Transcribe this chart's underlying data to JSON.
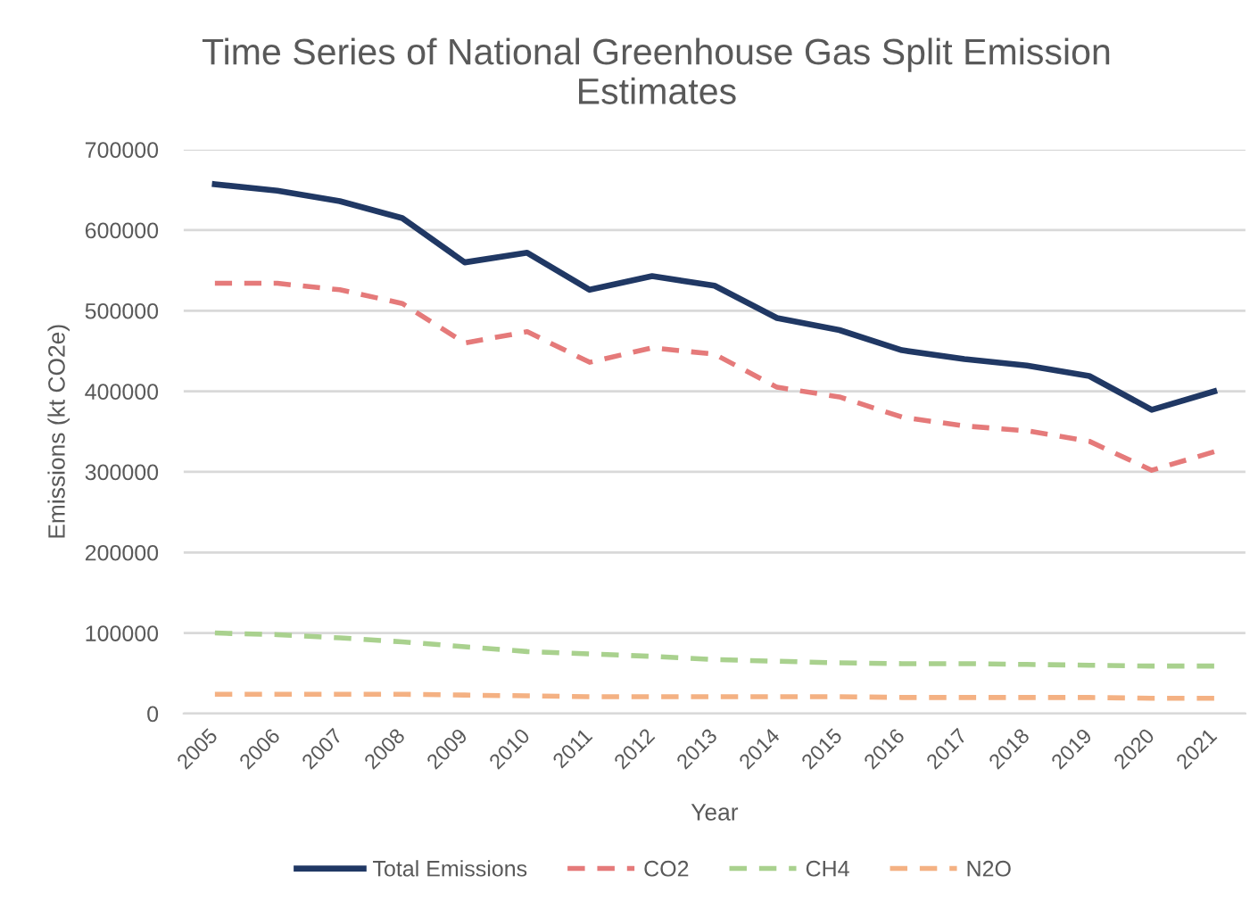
{
  "chart_data": {
    "type": "line",
    "title": "Time Series of National Greenhouse Gas Split Emission Estimates",
    "xlabel": "Year",
    "ylabel": "Emissions (kt CO2e)",
    "categories": [
      "2005",
      "2006",
      "2007",
      "2008",
      "2009",
      "2010",
      "2011",
      "2012",
      "2013",
      "2014",
      "2015",
      "2016",
      "2017",
      "2018",
      "2019",
      "2020",
      "2021"
    ],
    "ylim": [
      0,
      700000
    ],
    "yticks": [
      0,
      100000,
      200000,
      300000,
      400000,
      500000,
      600000,
      700000
    ],
    "grid": "y",
    "legend": "bottom",
    "series": [
      {
        "name": "Total Emissions",
        "color": "#203864",
        "line_style": "solid",
        "values": [
          657000,
          649000,
          636000,
          615000,
          560000,
          572000,
          526000,
          543000,
          531000,
          491000,
          476000,
          451000,
          440000,
          432000,
          419000,
          377000,
          400000
        ]
      },
      {
        "name": "CO2",
        "color": "#e57a7a",
        "line_style": "dashed",
        "values": [
          534000,
          534000,
          526000,
          509000,
          460000,
          474000,
          436000,
          454000,
          446000,
          405000,
          393000,
          368000,
          357000,
          351000,
          338000,
          302000,
          325000
        ]
      },
      {
        "name": "CH4",
        "color": "#a9d18e",
        "line_style": "dashed",
        "values": [
          100000,
          98000,
          94000,
          89000,
          83000,
          77000,
          74000,
          71000,
          67000,
          65000,
          63000,
          62000,
          62000,
          61000,
          60000,
          59000,
          59000
        ]
      },
      {
        "name": "N2O",
        "color": "#f4b183",
        "line_style": "dashed",
        "values": [
          24000,
          24000,
          24000,
          24000,
          23000,
          22000,
          21000,
          21000,
          21000,
          21000,
          21000,
          20000,
          20000,
          20000,
          20000,
          19000,
          19000
        ]
      }
    ]
  }
}
